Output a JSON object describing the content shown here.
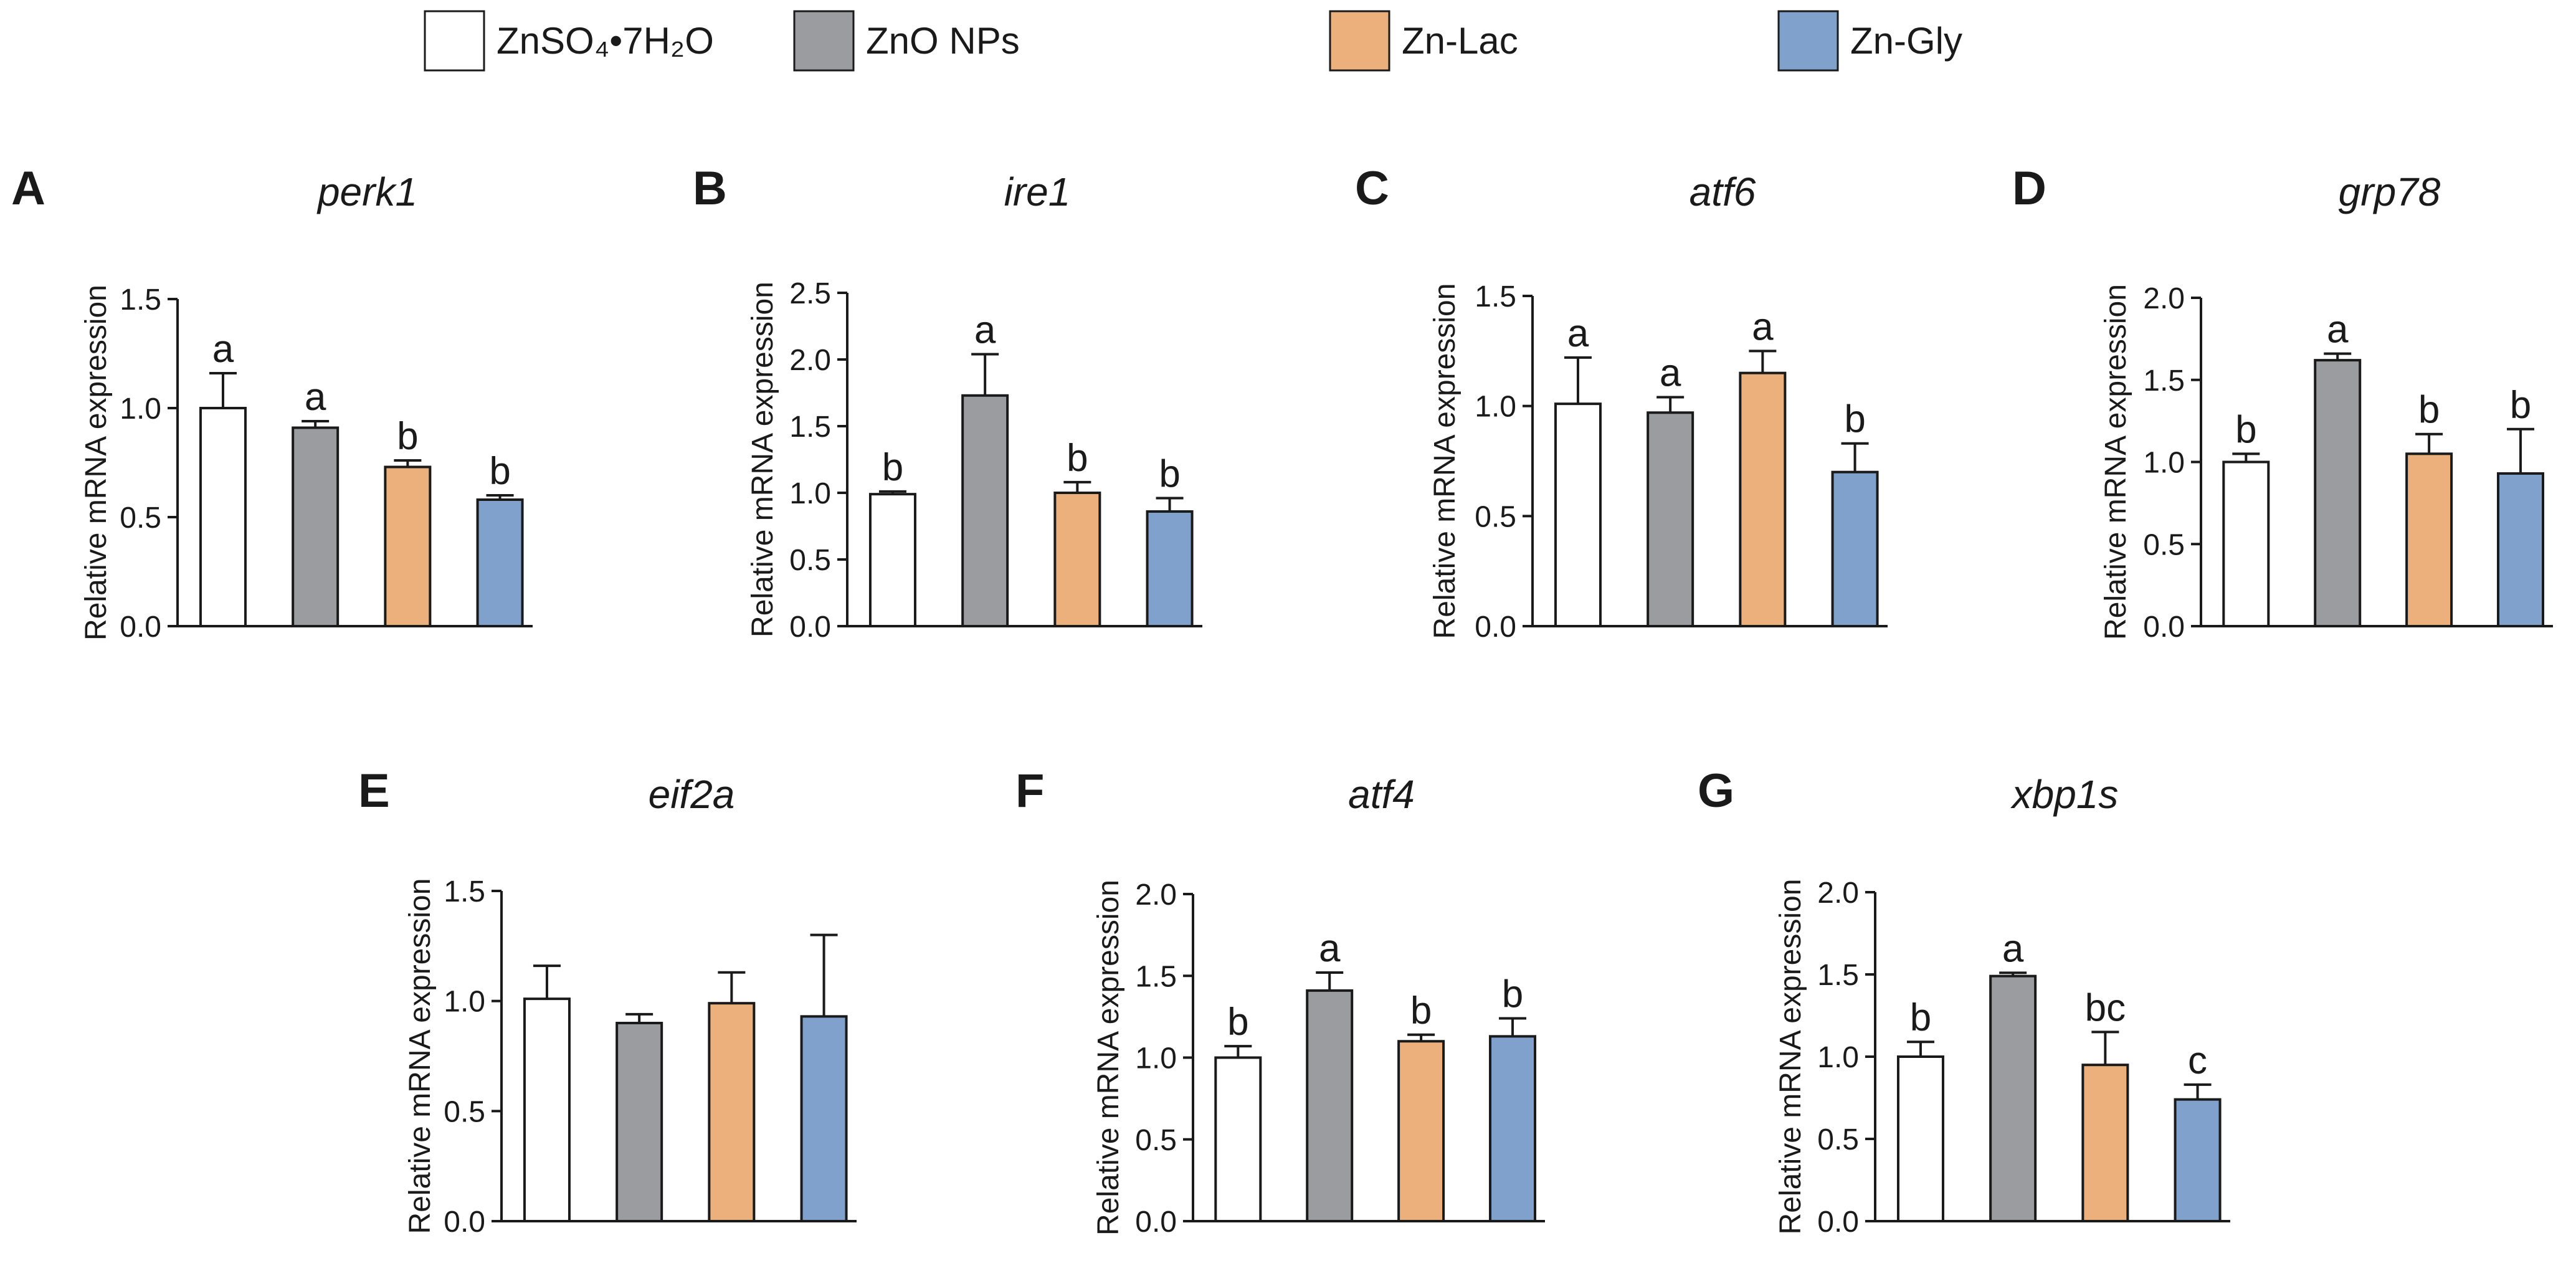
{
  "legend": [
    {
      "name": "ZnSO₄•7H₂O",
      "color": "#ffffff"
    },
    {
      "name": "ZnO NPs",
      "color": "#9a9c9f"
    },
    {
      "name": "Zn-Lac",
      "color": "#ebb07b"
    },
    {
      "name": "Zn-Gly",
      "color": "#7fa1cb"
    }
  ],
  "ylabel": "Relative mRNA expression",
  "chart_data": [
    {
      "type": "bar",
      "panel": "A",
      "title": "perk1",
      "ylabel": "Relative mRNA expression",
      "categories": [
        "ZnSO₄•7H₂O",
        "ZnO NPs",
        "Zn-Lac",
        "Zn-Gly"
      ],
      "values": [
        1.0,
        0.91,
        0.73,
        0.58
      ],
      "errors": [
        0.16,
        0.03,
        0.03,
        0.02
      ],
      "labels": [
        "a",
        "a",
        "b",
        "b"
      ],
      "ylim": [
        0,
        1.5
      ],
      "yticks": [
        "0.0",
        "0.5",
        "1.0",
        "1.5"
      ],
      "yticks_values": [
        0,
        0.5,
        1.0,
        1.5
      ]
    },
    {
      "type": "bar",
      "panel": "B",
      "title": "ire1",
      "ylabel": "Relative mRNA expression",
      "categories": [
        "ZnSO₄•7H₂O",
        "ZnO NPs",
        "Zn-Lac",
        "Zn-Gly"
      ],
      "values": [
        0.99,
        1.73,
        1.0,
        0.86
      ],
      "errors": [
        0.02,
        0.31,
        0.08,
        0.1
      ],
      "labels": [
        "b",
        "a",
        "b",
        "b"
      ],
      "ylim": [
        0,
        2.5
      ],
      "yticks": [
        "0.0",
        "0.5",
        "1.0",
        "1.5",
        "2.0",
        "2.5"
      ],
      "yticks_values": [
        0,
        0.5,
        1.0,
        1.5,
        2.0,
        2.5
      ]
    },
    {
      "type": "bar",
      "panel": "C",
      "title": "atf6",
      "ylabel": "Relative mRNA expression",
      "categories": [
        "ZnSO₄•7H₂O",
        "ZnO NPs",
        "Zn-Lac",
        "Zn-Gly"
      ],
      "values": [
        1.01,
        0.97,
        1.15,
        0.7
      ],
      "errors": [
        0.21,
        0.07,
        0.1,
        0.13
      ],
      "labels": [
        "a",
        "a",
        "a",
        "b"
      ],
      "ylim": [
        0,
        1.5
      ],
      "yticks": [
        "0.0",
        "0.5",
        "1.0",
        "1.5"
      ],
      "yticks_values": [
        0,
        0.5,
        1.0,
        1.5
      ]
    },
    {
      "type": "bar",
      "panel": "D",
      "title": "grp78",
      "ylabel": "Relative mRNA expression",
      "categories": [
        "ZnSO₄•7H₂O",
        "ZnO NPs",
        "Zn-Lac",
        "Zn-Gly"
      ],
      "values": [
        1.0,
        1.62,
        1.05,
        0.93
      ],
      "errors": [
        0.05,
        0.04,
        0.12,
        0.27
      ],
      "labels": [
        "b",
        "a",
        "b",
        "b"
      ],
      "ylim": [
        0,
        2.0
      ],
      "yticks": [
        "0.0",
        "0.5",
        "1.0",
        "1.5",
        "2.0"
      ],
      "yticks_values": [
        0,
        0.5,
        1.0,
        1.5,
        2.0
      ]
    },
    {
      "type": "bar",
      "panel": "E",
      "title": "eif2a",
      "ylabel": "Relative mRNA expression",
      "categories": [
        "ZnSO₄•7H₂O",
        "ZnO NPs",
        "Zn-Lac",
        "Zn-Gly"
      ],
      "values": [
        1.01,
        0.9,
        0.99,
        0.93
      ],
      "errors": [
        0.15,
        0.04,
        0.14,
        0.37
      ],
      "labels": [
        "",
        "",
        "",
        ""
      ],
      "ylim": [
        0,
        1.5
      ],
      "yticks": [
        "0.0",
        "0.5",
        "1.0",
        "1.5"
      ],
      "yticks_values": [
        0,
        0.5,
        1.0,
        1.5
      ]
    },
    {
      "type": "bar",
      "panel": "F",
      "title": "atf4",
      "ylabel": "Relative mRNA expression",
      "categories": [
        "ZnSO₄•7H₂O",
        "ZnO NPs",
        "Zn-Lac",
        "Zn-Gly"
      ],
      "values": [
        1.0,
        1.41,
        1.1,
        1.13
      ],
      "errors": [
        0.07,
        0.11,
        0.04,
        0.11
      ],
      "labels": [
        "b",
        "a",
        "b",
        "b"
      ],
      "ylim": [
        0,
        2.0
      ],
      "yticks": [
        "0.0",
        "0.5",
        "1.0",
        "1.5",
        "2.0"
      ],
      "yticks_values": [
        0,
        0.5,
        1.0,
        1.5,
        2.0
      ]
    },
    {
      "type": "bar",
      "panel": "G",
      "title": "xbp1s",
      "ylabel": "Relative mRNA expression",
      "categories": [
        "ZnSO₄•7H₂O",
        "ZnO NPs",
        "Zn-Lac",
        "Zn-Gly"
      ],
      "values": [
        1.0,
        1.49,
        0.95,
        0.74
      ],
      "errors": [
        0.09,
        0.02,
        0.2,
        0.09
      ],
      "labels": [
        "b",
        "a",
        "bc",
        "c"
      ],
      "ylim": [
        0,
        2.0
      ],
      "yticks": [
        "0.0",
        "0.5",
        "1.0",
        "1.5",
        "2.0"
      ],
      "yticks_values": [
        0,
        0.5,
        1.0,
        1.5,
        2.0
      ]
    }
  ]
}
